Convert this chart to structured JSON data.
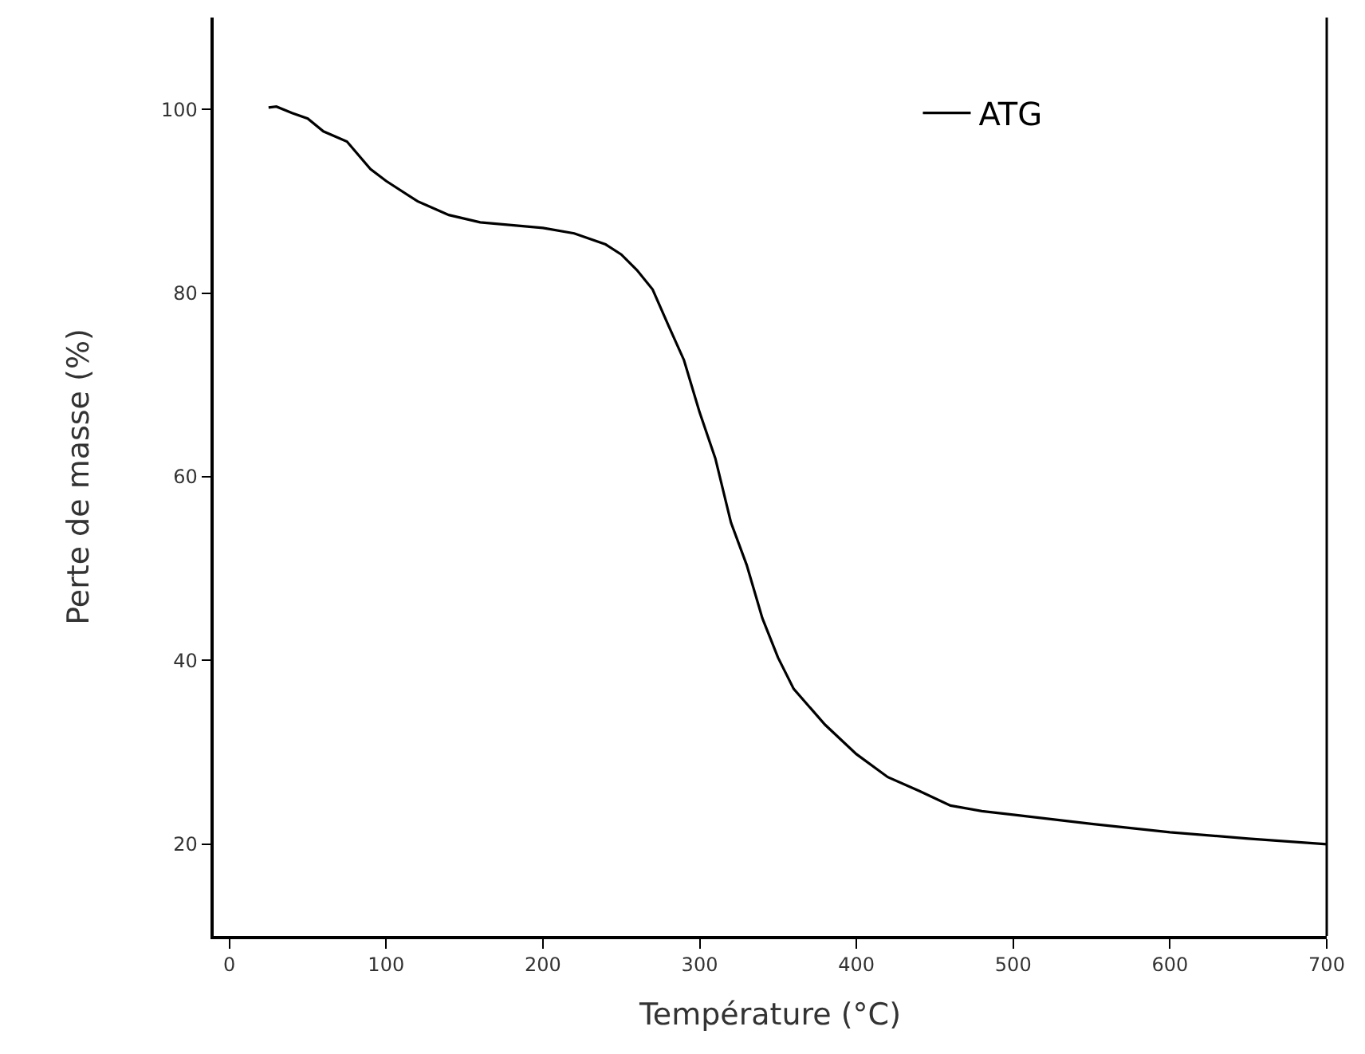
{
  "chart_data": {
    "type": "line",
    "xlabel": "Température (°C)",
    "ylabel": "Perte de masse (%)",
    "xlim": [
      -10,
      700
    ],
    "xticks": [
      0,
      100,
      200,
      300,
      400,
      500,
      600,
      700
    ],
    "ylim": [
      10,
      110
    ],
    "yticks": [
      20,
      40,
      60,
      80,
      100
    ],
    "grid": false,
    "legend": "top right",
    "marker": "none",
    "line_style": "solid",
    "series": [
      {
        "name": "ATG",
        "color": "#000000",
        "x": [
          25,
          30,
          40,
          50,
          60,
          75,
          90,
          100,
          120,
          140,
          160,
          180,
          200,
          220,
          240,
          250,
          260,
          270,
          280,
          290,
          300,
          310,
          320,
          330,
          340,
          350,
          360,
          380,
          400,
          420,
          440,
          460,
          480,
          500,
          550,
          600,
          650,
          700
        ],
        "values": [
          100.2,
          100.3,
          99.6,
          99.0,
          97.6,
          96.5,
          93.5,
          92.2,
          90.0,
          88.5,
          87.7,
          87.4,
          87.1,
          86.5,
          85.3,
          84.2,
          82.5,
          80.4,
          76.5,
          72.7,
          67,
          62,
          55,
          50.4,
          44.6,
          40.3,
          36.9,
          33,
          29.8,
          27.3,
          25.8,
          24.2,
          23.6,
          23.2,
          22.2,
          21.3,
          20.6,
          20.0
        ]
      }
    ]
  }
}
